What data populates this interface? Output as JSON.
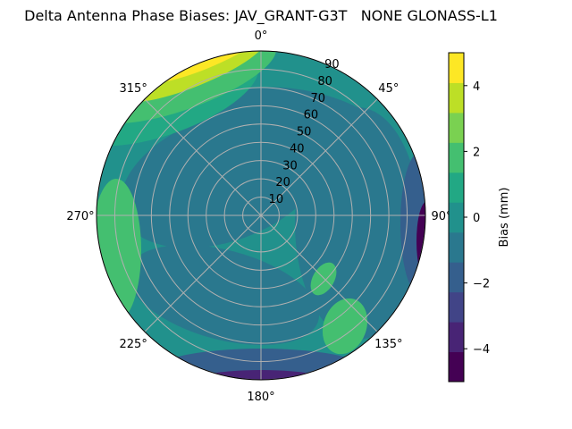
{
  "chart_data": {
    "type": "polar-contour",
    "title": "Delta Antenna Phase Biases: JAV_GRANT-G3T   NONE GLONASS-L1",
    "angular_ticks": [
      "0°",
      "45°",
      "90°",
      "135°",
      "180°",
      "225°",
      "270°",
      "315°"
    ],
    "angular_values_deg": [
      0,
      45,
      90,
      135,
      180,
      225,
      270,
      315
    ],
    "radial_ticks": [
      "10",
      "20",
      "30",
      "40",
      "50",
      "60",
      "70",
      "80",
      "90"
    ],
    "radial_values": [
      10,
      20,
      30,
      40,
      50,
      60,
      70,
      80,
      90
    ],
    "rlim": [
      0,
      90
    ],
    "theta_zero": "N",
    "theta_direction": "clockwise",
    "grid": true,
    "colorbar": {
      "label": "Bias (mm)",
      "ticks": [
        "−4",
        "−2",
        "0",
        "2",
        "4"
      ],
      "tick_values": [
        -4,
        -2,
        0,
        2,
        4
      ],
      "range": [
        -5,
        5
      ],
      "levels": [
        -5,
        -4.5,
        -4,
        -3.5,
        -3,
        -2.5,
        -2,
        -1.5,
        -1,
        -0.5,
        0.5,
        1,
        1.5,
        2,
        2.5,
        3,
        3.5,
        4,
        4.5,
        5
      ]
    },
    "colormap": [
      "#440154",
      "#482475",
      "#414487",
      "#355f8d",
      "#2a788e",
      "#21918c",
      "#22a884",
      "#44bf70",
      "#7ad151",
      "#bddf26",
      "#fde725"
    ],
    "regions": [
      {
        "name": "north-west high (top yellow)",
        "azimuth_range": [
          320,
          360
        ],
        "elevation_range": [
          80,
          90
        ],
        "value": 4.5
      },
      {
        "name": "north-west positive band",
        "azimuth_range": [
          300,
          340
        ],
        "elevation_range": [
          70,
          90
        ],
        "value": 2.5
      },
      {
        "name": "east rim negative",
        "azimuth_range": [
          80,
          120
        ],
        "elevation_range": [
          80,
          90
        ],
        "value": -4.5
      },
      {
        "name": "south rim negative",
        "azimuth_range": [
          160,
          210
        ],
        "elevation_range": [
          80,
          90
        ],
        "value": -3.5
      },
      {
        "name": "west positive",
        "azimuth_range": [
          250,
          280
        ],
        "elevation_range": [
          70,
          90
        ],
        "value": 1.5
      },
      {
        "name": "south-east positive patch",
        "azimuth_range": [
          130,
          150
        ],
        "elevation_range": [
          50,
          75
        ],
        "value": 1.5
      },
      {
        "name": "center",
        "azimuth_range": [
          0,
          360
        ],
        "elevation_range": [
          0,
          40
        ],
        "value": 0
      }
    ]
  }
}
